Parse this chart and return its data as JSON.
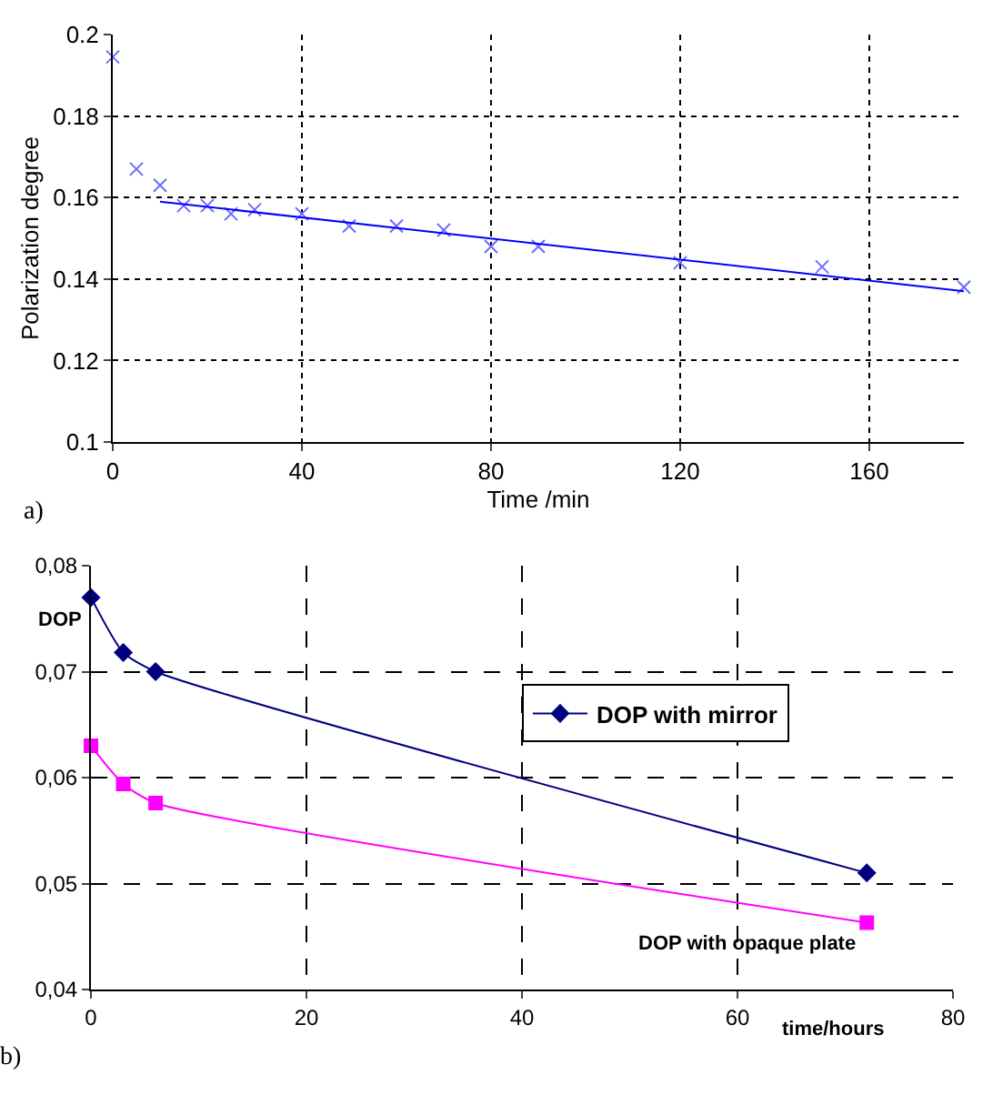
{
  "chart_data": [
    {
      "type": "scatter",
      "xlabel": "Time /min",
      "ylabel": "Polarization degree",
      "annotations": [
        "a)"
      ],
      "xlim": [
        0,
        180
      ],
      "xticks": [
        0,
        40,
        80,
        120,
        160
      ],
      "ylim": [
        0.1,
        0.2
      ],
      "yticks": [
        0.1,
        0.12,
        0.14,
        0.16,
        0.18,
        0.2
      ],
      "grid": true,
      "legend": false,
      "marker": "cross",
      "series": [
        {
          "color": "#6b6bff",
          "x": [
            0,
            5,
            10,
            15,
            20,
            25,
            30,
            40,
            50,
            60,
            70,
            80,
            90,
            120,
            150,
            180
          ],
          "values": [
            0.1945,
            0.167,
            0.163,
            0.158,
            0.158,
            0.156,
            0.157,
            0.156,
            0.153,
            0.153,
            0.152,
            0.148,
            0.148,
            0.144,
            0.143,
            0.138
          ]
        },
        {
          "type": "line",
          "color": "#0000ff",
          "marker": "none",
          "line_style": "solid",
          "x": [
            10,
            180
          ],
          "values": [
            0.159,
            0.137
          ]
        }
      ]
    },
    {
      "type": "line",
      "xlabel": "time/hours",
      "ylabel": "DOP",
      "annotations": [
        "b)"
      ],
      "xlim": [
        0,
        80
      ],
      "xticks": [
        0,
        20,
        40,
        60,
        80
      ],
      "ylim": [
        0.04,
        0.08
      ],
      "yticks": [
        {
          "value": 0.04,
          "label": "0,04"
        },
        {
          "value": 0.05,
          "label": "0,05"
        },
        {
          "value": 0.06,
          "label": "0,06"
        },
        {
          "value": 0.07,
          "label": "0,07"
        },
        {
          "value": 0.08,
          "label": "0,08"
        }
      ],
      "grid": true,
      "legend": "right",
      "line_style": "solid",
      "x": [
        0,
        3,
        6,
        72
      ],
      "series": [
        {
          "name": "DOP with mirror",
          "color": "#000080",
          "marker": "diamond",
          "values": [
            0.077,
            0.0718,
            0.07,
            0.051
          ]
        },
        {
          "name": "DOP with opaque plate",
          "color": "#ff00ff",
          "marker": "square",
          "values": [
            0.063,
            0.0594,
            0.0576,
            0.0463
          ]
        }
      ]
    }
  ]
}
